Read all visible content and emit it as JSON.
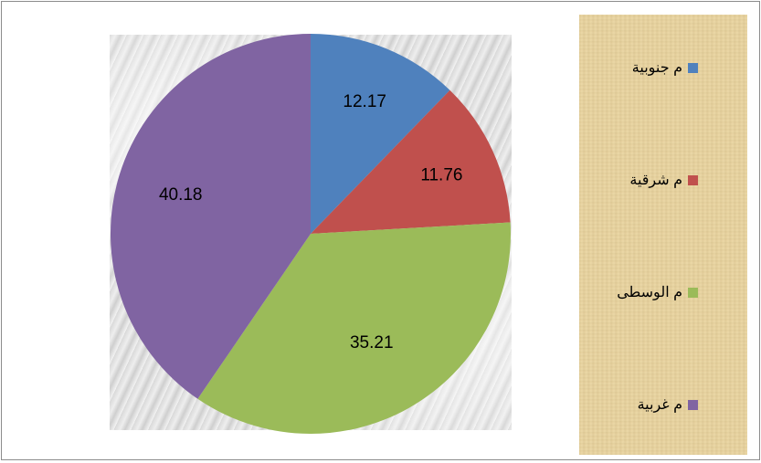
{
  "chart_data": {
    "type": "pie",
    "categories": [
      "م جنوبية",
      "م شرقية",
      "م الوسطى",
      "م غربية"
    ],
    "values": [
      12.17,
      11.76,
      35.21,
      40.18
    ],
    "value_labels": [
      "12.17",
      "11.76",
      "35.21",
      "40.18"
    ],
    "colors": [
      "#4f81bd",
      "#c0504d",
      "#9bbb59",
      "#8064a2"
    ],
    "start_angle_deg": 0,
    "direction": "clockwise",
    "legend": "right"
  },
  "legend": {
    "items": [
      {
        "label": "م جنوبية",
        "color": "#4f81bd"
      },
      {
        "label": "م شرقية",
        "color": "#c0504d"
      },
      {
        "label": "م الوسطى",
        "color": "#9bbb59"
      },
      {
        "label": "م غربية",
        "color": "#8064a2"
      }
    ]
  }
}
